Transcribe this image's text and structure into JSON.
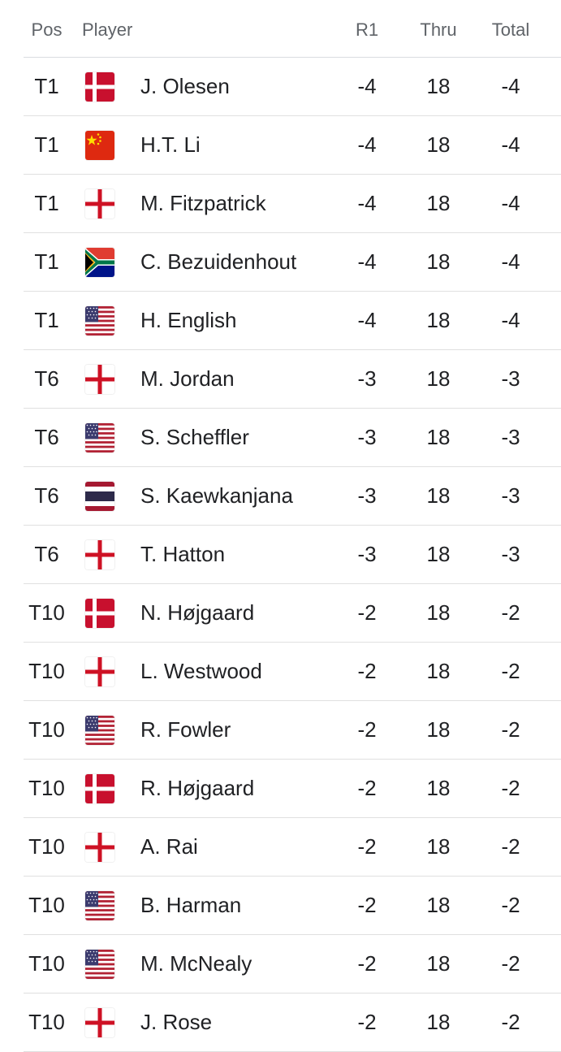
{
  "header": {
    "pos": "Pos",
    "player": "Player",
    "r1": "R1",
    "thru": "Thru",
    "total": "Total"
  },
  "rows": [
    {
      "pos": "T1",
      "flag": "denmark-flag",
      "name": "J. Olesen",
      "r1": "-4",
      "thru": "18",
      "total": "-4"
    },
    {
      "pos": "T1",
      "flag": "china-flag",
      "name": "H.T. Li",
      "r1": "-4",
      "thru": "18",
      "total": "-4"
    },
    {
      "pos": "T1",
      "flag": "england-flag",
      "name": "M. Fitzpatrick",
      "r1": "-4",
      "thru": "18",
      "total": "-4"
    },
    {
      "pos": "T1",
      "flag": "south-africa-flag",
      "name": "C. Bezuidenhout",
      "r1": "-4",
      "thru": "18",
      "total": "-4"
    },
    {
      "pos": "T1",
      "flag": "usa-flag",
      "name": "H. English",
      "r1": "-4",
      "thru": "18",
      "total": "-4"
    },
    {
      "pos": "T6",
      "flag": "england-flag",
      "name": "M. Jordan",
      "r1": "-3",
      "thru": "18",
      "total": "-3"
    },
    {
      "pos": "T6",
      "flag": "usa-flag",
      "name": "S. Scheffler",
      "r1": "-3",
      "thru": "18",
      "total": "-3"
    },
    {
      "pos": "T6",
      "flag": "thailand-flag",
      "name": "S. Kaewkanjana",
      "r1": "-3",
      "thru": "18",
      "total": "-3"
    },
    {
      "pos": "T6",
      "flag": "england-flag",
      "name": "T. Hatton",
      "r1": "-3",
      "thru": "18",
      "total": "-3"
    },
    {
      "pos": "T10",
      "flag": "denmark-flag",
      "name": "N. Højgaard",
      "r1": "-2",
      "thru": "18",
      "total": "-2"
    },
    {
      "pos": "T10",
      "flag": "england-flag",
      "name": "L. Westwood",
      "r1": "-2",
      "thru": "18",
      "total": "-2"
    },
    {
      "pos": "T10",
      "flag": "usa-flag",
      "name": "R. Fowler",
      "r1": "-2",
      "thru": "18",
      "total": "-2"
    },
    {
      "pos": "T10",
      "flag": "denmark-flag",
      "name": "R. Højgaard",
      "r1": "-2",
      "thru": "18",
      "total": "-2"
    },
    {
      "pos": "T10",
      "flag": "england-flag",
      "name": "A. Rai",
      "r1": "-2",
      "thru": "18",
      "total": "-2"
    },
    {
      "pos": "T10",
      "flag": "usa-flag",
      "name": "B. Harman",
      "r1": "-2",
      "thru": "18",
      "total": "-2"
    },
    {
      "pos": "T10",
      "flag": "usa-flag",
      "name": "M. McNealy",
      "r1": "-2",
      "thru": "18",
      "total": "-2"
    },
    {
      "pos": "T10",
      "flag": "england-flag",
      "name": "J. Rose",
      "r1": "-2",
      "thru": "18",
      "total": "-2"
    }
  ]
}
